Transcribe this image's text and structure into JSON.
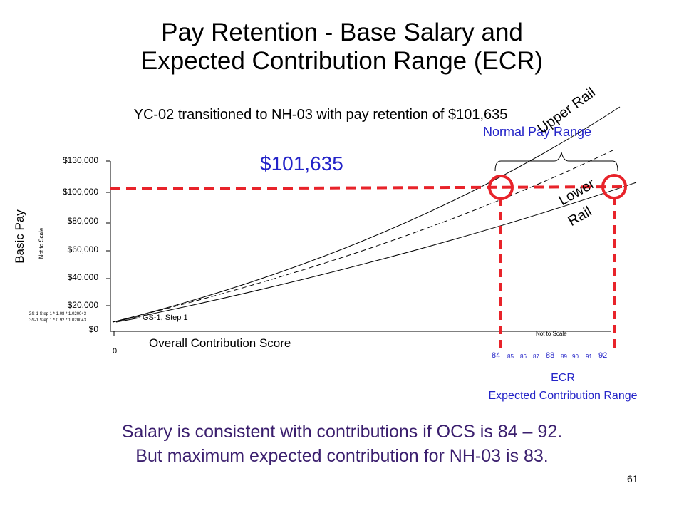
{
  "title_line1": "Pay Retention - Base Salary and",
  "title_line2": "Expected Contribution Range (ECR)",
  "subtitle": "YC-02 transitioned to NH-03 with pay retention of $101,635",
  "normal_pay_range": "Normal Pay Range",
  "upper_rail": "Upper Rail",
  "lower_rail_1": "Lower",
  "lower_rail_2": "Rail",
  "amount": "$101,635",
  "y_axis_label": "Basic Pay",
  "y_axis_note": "Not to Scale",
  "y_ticks": [
    "$130,000",
    "$100,000",
    "$80,000",
    "$60,000",
    "$40,000",
    "$20,000",
    "$0"
  ],
  "gs_note_1": "GS-1 Step 1 * 1.08 * 1.020043",
  "gs_note_2": "GS-1 Step 1 * 0.92 * 1.020043",
  "gs_label": "GS-1, Step 1",
  "x_zero": "0",
  "x_axis_label": "Overall Contribution Score",
  "x_note": "Not to Scale",
  "ecr_numbers": [
    "84",
    "85",
    "86",
    "87",
    "88",
    "89",
    "90",
    "91",
    "92"
  ],
  "ecr_label": "ECR",
  "ecr_full": "Expected Contribution Range",
  "footer_line1": "Salary is consistent with contributions if OCS is 84 – 92.",
  "footer_line2": "But maximum expected contribution for NH-03 is 83.",
  "page_number": "61",
  "colors": {
    "highlight": "#e8232a",
    "blue_text": "#2424c8",
    "footer_text": "#3b1f6e"
  }
}
